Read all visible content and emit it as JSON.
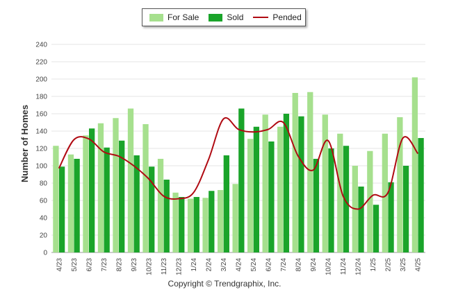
{
  "legend": {
    "for_sale": "For Sale",
    "sold": "Sold",
    "pended": "Pended"
  },
  "copyright": "Copyright © Trendgraphix, Inc.",
  "colors": {
    "for_sale": "#a6e08e",
    "sold": "#1aa42a",
    "pended": "#b00a12",
    "grid": "#e6e6e6"
  },
  "chart_data": {
    "type": "bar",
    "ylabel": "Number of Homes",
    "ylim": [
      0,
      240
    ],
    "yticks": [
      0,
      20,
      40,
      60,
      80,
      100,
      120,
      140,
      160,
      180,
      200,
      220,
      240
    ],
    "categories": [
      "4/23",
      "5/23",
      "6/23",
      "7/23",
      "8/23",
      "9/23",
      "10/23",
      "11/23",
      "12/23",
      "1/24",
      "2/24",
      "3/24",
      "4/24",
      "5/24",
      "6/24",
      "7/24",
      "8/24",
      "9/24",
      "10/24",
      "11/24",
      "12/24",
      "1/25",
      "2/25",
      "3/25",
      "4/25"
    ],
    "series": [
      {
        "name": "For Sale",
        "kind": "bar",
        "values": [
          123,
          113,
          135,
          149,
          155,
          166,
          148,
          108,
          69,
          62,
          63,
          72,
          79,
          131,
          159,
          145,
          184,
          185,
          159,
          137,
          100,
          117,
          137,
          156,
          202
        ]
      },
      {
        "name": "Sold",
        "kind": "bar",
        "values": [
          99,
          108,
          143,
          121,
          129,
          112,
          99,
          84,
          64,
          64,
          71,
          112,
          166,
          145,
          128,
          160,
          157,
          108,
          120,
          123,
          76,
          55,
          81,
          100,
          132
        ]
      },
      {
        "name": "Pended",
        "kind": "line",
        "values": [
          97,
          130,
          131,
          116,
          111,
          100,
          85,
          65,
          62,
          69,
          107,
          154,
          142,
          139,
          142,
          150,
          111,
          95,
          129,
          65,
          50,
          66,
          69,
          132,
          114
        ]
      }
    ]
  }
}
